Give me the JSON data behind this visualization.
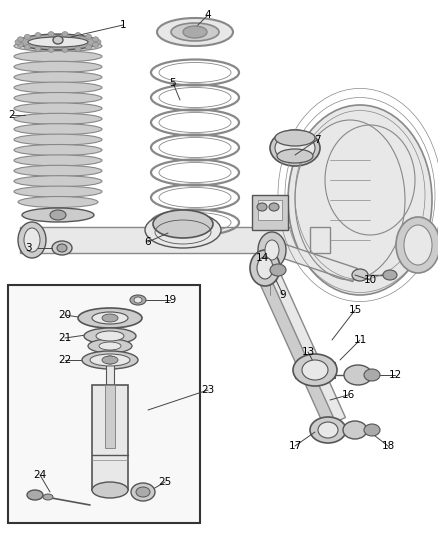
{
  "bg": "#ffffff",
  "fig_w": 4.38,
  "fig_h": 5.33,
  "dpi": 100,
  "lc": "#555555",
  "lc2": "#888888",
  "fc_light": "#e8e8e8",
  "fc_mid": "#cccccc",
  "fc_dark": "#aaaaaa"
}
